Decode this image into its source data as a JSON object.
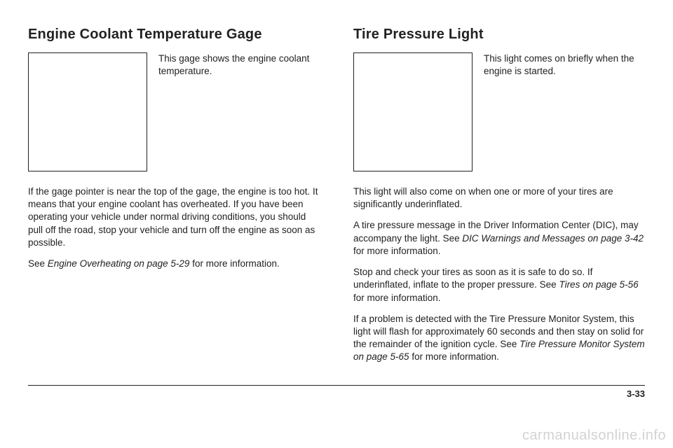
{
  "left": {
    "heading": "Engine Coolant Temperature Gage",
    "caption": "This gage shows the engine coolant temperature.",
    "para1": "If the gage pointer is near the top of the gage, the engine is too hot. It means that your engine coolant has overheated. If you have been operating your vehicle under normal driving conditions, you should pull off the road, stop your vehicle and turn off the engine as soon as possible.",
    "para2_pre": "See ",
    "para2_em": "Engine Overheating on page 5-29",
    "para2_post": " for more information."
  },
  "right": {
    "heading": "Tire Pressure Light",
    "caption": "This light comes on briefly when the engine is started.",
    "para1": "This light will also come on when one or more of your tires are significantly underinflated.",
    "para2_pre": "A tire pressure message in the Driver Information Center (DIC), may accompany the light. See ",
    "para2_em": "DIC Warnings and Messages on page 3-42",
    "para2_post": " for more information.",
    "para3_pre": "Stop and check your tires as soon as it is safe to do so. If underinflated, inflate to the proper pressure. See ",
    "para3_em": "Tires on page 5-56",
    "para3_post": " for more information.",
    "para4_pre": "If a problem is detected with the Tire Pressure Monitor System, this light will flash for approximately 60 seconds and then stay on solid for the remainder of the ignition cycle. See ",
    "para4_em": "Tire Pressure Monitor System on page 5-65",
    "para4_post": " for more information."
  },
  "page_number": "3-33",
  "watermark": "carmanualsonline.info"
}
